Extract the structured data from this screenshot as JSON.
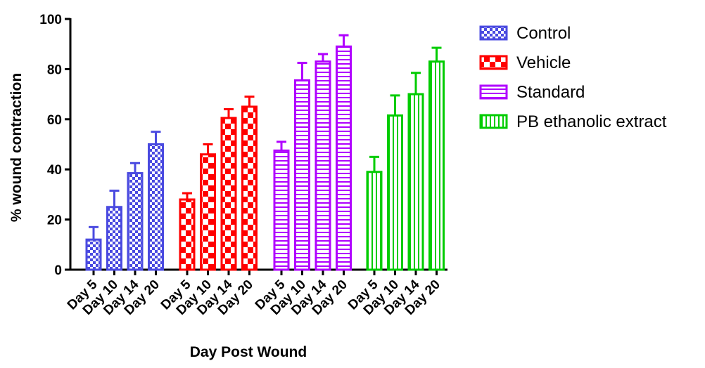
{
  "chart_data": {
    "type": "bar",
    "title": "",
    "xlabel": "Day Post Wound",
    "ylabel": "% wound contraction",
    "ylim": [
      0,
      100
    ],
    "yticks": [
      0,
      20,
      40,
      60,
      80,
      100
    ],
    "grid": false,
    "legend_position": "top-right",
    "series": [
      {
        "name": "Control",
        "color": "#4a4ae0",
        "pattern": "checker-fine",
        "categories": [
          "Day 5",
          "Day 10",
          "Day 14",
          "Day 20"
        ],
        "values": [
          12,
          25,
          38.5,
          50
        ],
        "errors": [
          5,
          6.5,
          4,
          5
        ]
      },
      {
        "name": "Vehicle",
        "color": "#ff0000",
        "pattern": "checker-coarse",
        "categories": [
          "Day 5",
          "Day 10",
          "Day 14",
          "Day 20"
        ],
        "values": [
          28,
          46,
          60.5,
          65
        ],
        "errors": [
          2.5,
          4,
          3.5,
          4
        ]
      },
      {
        "name": "Standard",
        "color": "#b000ff",
        "pattern": "horizontal-lines",
        "categories": [
          "Day 5",
          "Day 10",
          "Day 14",
          "Day 20"
        ],
        "values": [
          47.5,
          75.5,
          83,
          89
        ],
        "errors": [
          3.5,
          7,
          3,
          4.5
        ]
      },
      {
        "name": "PB ethanolic extract",
        "color": "#00cc00",
        "pattern": "vertical-lines",
        "categories": [
          "Day 5",
          "Day 10",
          "Day 14",
          "Day 20"
        ],
        "values": [
          39,
          61.5,
          70,
          83
        ],
        "errors": [
          6,
          8,
          8.5,
          5.5
        ]
      }
    ]
  }
}
